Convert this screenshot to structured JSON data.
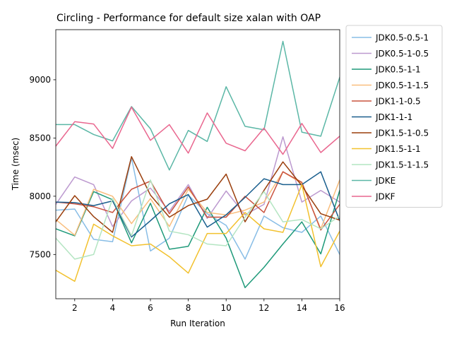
{
  "chart_data": {
    "type": "line",
    "title": "Circling - Performance for default size xalan with OAP",
    "xlabel": "Run Iteration",
    "ylabel": "Time (msec)",
    "xlim": [
      1,
      16
    ],
    "ylim": [
      7120,
      9430
    ],
    "xticks": [
      2,
      4,
      6,
      8,
      10,
      12,
      14,
      16
    ],
    "yticks": [
      7500,
      8000,
      8500,
      9000
    ],
    "legend_position": "outside-right",
    "grid": false,
    "x": [
      1,
      2,
      3,
      4,
      5,
      6,
      7,
      8,
      9,
      10,
      11,
      12,
      13,
      14,
      15,
      16
    ],
    "series": [
      {
        "name": "JDK0.5-0.5-1",
        "color": "#88bde6",
        "values": [
          7880,
          7890,
          7630,
          7610,
          8330,
          7530,
          7640,
          8010,
          7850,
          7750,
          7460,
          7830,
          7730,
          7690,
          7830,
          7500
        ]
      },
      {
        "name": "JDK0.5-1-0.5",
        "color": "#bc99cf",
        "values": [
          7930,
          8165,
          8100,
          7740,
          7960,
          8070,
          7870,
          8100,
          7810,
          8045,
          7840,
          7930,
          8510,
          7950,
          8050,
          7950
        ]
      },
      {
        "name": "JDK0.5-1-1",
        "color": "#1f9a7a",
        "values": [
          7720,
          7660,
          8040,
          7970,
          7600,
          7940,
          7545,
          7570,
          7905,
          7640,
          7215,
          7390,
          7590,
          7780,
          7505,
          8050
        ]
      },
      {
        "name": "JDK0.5-1-1.5",
        "color": "#f9be7d",
        "values": [
          7800,
          7665,
          8060,
          8000,
          7765,
          7980,
          7740,
          8060,
          7860,
          7840,
          7880,
          7950,
          8210,
          8110,
          7720,
          8140
        ]
      },
      {
        "name": "JDK1-1-0.5",
        "color": "#c9533f",
        "values": [
          7950,
          7935,
          7910,
          7860,
          8060,
          8130,
          7850,
          8080,
          7820,
          7820,
          8000,
          7860,
          8210,
          8120,
          7710,
          7930
        ]
      },
      {
        "name": "JDK1-1-1",
        "color": "#1a5f8e",
        "values": [
          7950,
          7945,
          7920,
          7960,
          7650,
          7790,
          7935,
          8015,
          7735,
          7840,
          7990,
          8150,
          8100,
          8100,
          8210,
          7790
        ]
      },
      {
        "name": "JDK1.5-1-0.5",
        "color": "#9a3e0c",
        "values": [
          7780,
          8005,
          7825,
          7690,
          8340,
          8010,
          7820,
          7920,
          7975,
          8190,
          7780,
          8050,
          8295,
          8090,
          7850,
          7795
        ]
      },
      {
        "name": "JDK1.5-1-1",
        "color": "#f2c12e",
        "values": [
          7365,
          7270,
          7760,
          7660,
          7575,
          7590,
          7480,
          7340,
          7680,
          7680,
          7860,
          7720,
          7690,
          8100,
          7395,
          7700
        ]
      },
      {
        "name": "JDK1.5-1-1.5",
        "color": "#b4e5c2",
        "values": [
          7640,
          7460,
          7500,
          7980,
          7660,
          8140,
          7700,
          7670,
          7590,
          7575,
          7820,
          8040,
          7780,
          7800,
          7720,
          7830
        ]
      },
      {
        "name": "JDKE",
        "color": "#5bb7a6",
        "values": [
          8615,
          8615,
          8530,
          8475,
          8770,
          8580,
          8225,
          8565,
          8470,
          8940,
          8600,
          8570,
          9330,
          8550,
          8515,
          9020
        ]
      },
      {
        "name": "JDKF",
        "color": "#e9678f",
        "values": [
          8430,
          8640,
          8620,
          8410,
          8765,
          8480,
          8615,
          8370,
          8715,
          8455,
          8390,
          8585,
          8360,
          8625,
          8375,
          8515
        ]
      }
    ]
  }
}
